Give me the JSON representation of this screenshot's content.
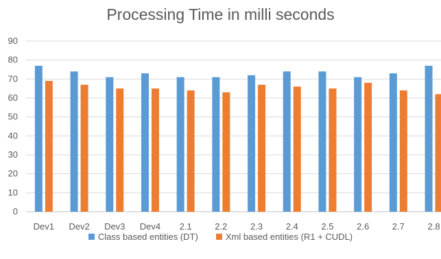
{
  "chart_data": {
    "type": "bar",
    "title": "Processing Time in milli seconds",
    "categories": [
      "Dev1",
      "Dev2",
      "Dev3",
      "Dev4",
      "2.1",
      "2.2",
      "2.3",
      "2.4",
      "2.5",
      "2.6",
      "2.7",
      "2.8"
    ],
    "series": [
      {
        "name": "Class based entities (DT)",
        "color": "#5B9BD5",
        "values": [
          77,
          74,
          71,
          73,
          71,
          71,
          72,
          74,
          74,
          71,
          73,
          77
        ]
      },
      {
        "name": "Xml based entities (R1 + CUDL)",
        "color": "#ED7D31",
        "values": [
          69,
          67,
          65,
          65,
          64,
          63,
          67,
          66,
          65,
          68,
          64,
          62
        ]
      }
    ],
    "ylim": [
      0,
      90
    ],
    "yticks": [
      0,
      10,
      20,
      30,
      40,
      50,
      60,
      70,
      80,
      90
    ],
    "grid": true,
    "legend_position": "bottom"
  }
}
